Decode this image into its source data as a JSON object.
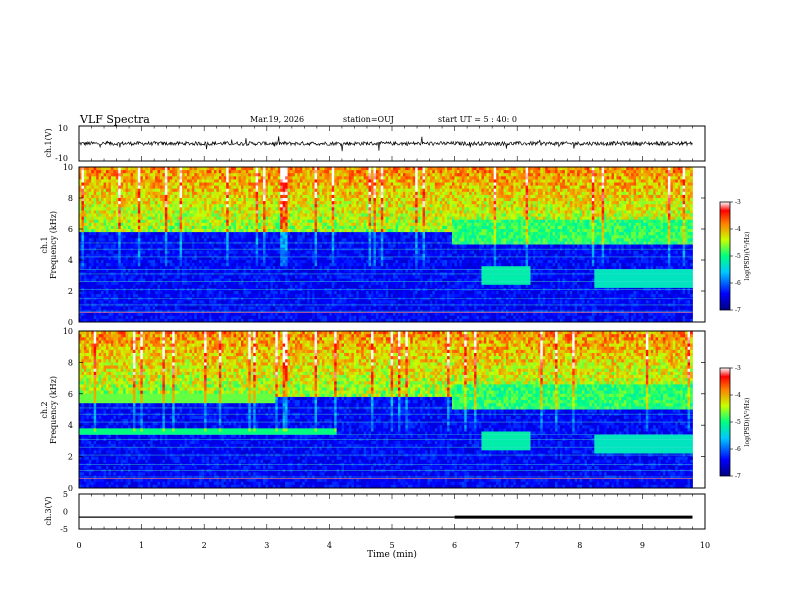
{
  "header": {
    "title": "VLF Spectra",
    "date": "Mar.19, 2026",
    "station": "station=OUJ",
    "start_ut": "start  UT =   5 : 40: 0"
  },
  "chart_data": [
    {
      "type": "line",
      "name": "ch1-waveform",
      "ylabel": "ch.1(V)",
      "ylim": [
        -10,
        10
      ],
      "y_ticks": [
        "10",
        "-10"
      ],
      "xlim": [
        0,
        10
      ],
      "trace_end_min": 9.8,
      "baseline_v": 0
    },
    {
      "type": "heatmap",
      "name": "ch1-spectrogram",
      "ylabel_channel": "ch.1",
      "ylabel": "Frequency (kHz)",
      "ylim": [
        0,
        10
      ],
      "y_ticks": [
        "0",
        "2",
        "4",
        "6",
        "8",
        "10"
      ],
      "xlim": [
        0,
        10
      ],
      "data_end_min": 9.8,
      "colorbar": {
        "label": "log(PSD)(V²/Hz)",
        "range": [
          -7,
          -3
        ],
        "ticks": [
          "-3",
          "-4",
          "-5",
          "-6",
          "-7"
        ]
      }
    },
    {
      "type": "heatmap",
      "name": "ch2-spectrogram",
      "ylabel_channel": "ch.2",
      "ylabel": "Frequency (kHz)",
      "ylim": [
        0,
        10
      ],
      "y_ticks": [
        "0",
        "2",
        "4",
        "6",
        "8",
        "10"
      ],
      "xlim": [
        0,
        10
      ],
      "data_end_min": 9.8,
      "colorbar": {
        "label": "log(PSD)(V²/Hz)",
        "range": [
          -7,
          -3
        ],
        "ticks": [
          "-3",
          "-4",
          "-5",
          "-6",
          "-7"
        ]
      }
    },
    {
      "type": "line",
      "name": "ch3-signal",
      "ylabel": "ch.3(V)",
      "ylim": [
        -5,
        5
      ],
      "y_ticks": [
        "5",
        "0",
        "-5"
      ],
      "xlim": [
        0,
        10
      ],
      "x_ticks": [
        "0",
        "1",
        "2",
        "3",
        "4",
        "5",
        "6",
        "7",
        "8",
        "9",
        "10"
      ],
      "xlabel": "Time (min)",
      "segments": [
        {
          "t0": 0,
          "t1": 6.0,
          "v": -1.6
        },
        {
          "t0": 6.0,
          "t1": 9.8,
          "v": -1.6
        }
      ]
    }
  ],
  "colors": {
    "background": "#000080",
    "trace": "#000000"
  }
}
